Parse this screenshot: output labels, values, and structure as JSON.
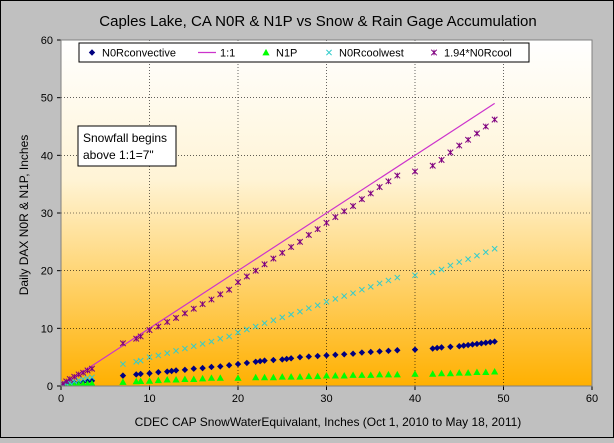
{
  "chart_data": {
    "type": "scatter",
    "title": "Caples Lake, CA N0R & N1P  vs Snow & Rain Gage Accumulation",
    "xlabel": "CDEC CAP SnowWaterEquivalant, Inches (Oct 1, 2010 to May 18, 2011)",
    "ylabel": "Daily DAX N0R & N1P, Inches",
    "xlim": [
      0,
      60
    ],
    "ylim": [
      0,
      60
    ],
    "x_ticks": [
      "0",
      "10",
      "20",
      "30",
      "40",
      "50",
      "60"
    ],
    "y_ticks": [
      "0",
      "10",
      "20",
      "30",
      "40",
      "50",
      "60"
    ],
    "grid": true,
    "legend_position": "top",
    "annotation": {
      "line1": "Snowfall begins",
      "line2": "above 1:1=7\"",
      "x": 4.8,
      "y": 42
    },
    "colors": {
      "N0Rconvective": "#000080",
      "1:1": "#cc33cc",
      "N1P": "#00ff00",
      "N0Rcoolwest": "#33cccc",
      "1.94*N0Rcool": "#800080",
      "gradient_top": "#ffffff",
      "gradient_bottom": "#ffb000"
    },
    "series": [
      {
        "name": "N0Rconvective",
        "marker": "diamond",
        "points": [
          [
            0.2,
            0.1
          ],
          [
            0.6,
            0.2
          ],
          [
            1.0,
            0.3
          ],
          [
            1.5,
            0.5
          ],
          [
            2.0,
            0.6
          ],
          [
            2.5,
            0.7
          ],
          [
            3.0,
            0.8
          ],
          [
            3.5,
            0.9
          ],
          [
            7,
            1.8
          ],
          [
            8.5,
            2.0
          ],
          [
            9,
            2.1
          ],
          [
            10,
            2.2
          ],
          [
            11,
            2.4
          ],
          [
            12,
            2.5
          ],
          [
            12.5,
            2.6
          ],
          [
            13,
            2.7
          ],
          [
            14,
            2.8
          ],
          [
            15,
            3.0
          ],
          [
            16,
            3.1
          ],
          [
            17,
            3.3
          ],
          [
            18,
            3.4
          ],
          [
            19,
            3.6
          ],
          [
            20,
            3.8
          ],
          [
            21,
            4.0
          ],
          [
            22,
            4.2
          ],
          [
            22.5,
            4.3
          ],
          [
            23,
            4.4
          ],
          [
            24,
            4.5
          ],
          [
            25,
            4.6
          ],
          [
            25.5,
            4.7
          ],
          [
            26,
            4.8
          ],
          [
            27,
            5.0
          ],
          [
            28,
            5.1
          ],
          [
            29,
            5.2
          ],
          [
            30,
            5.3
          ],
          [
            31,
            5.4
          ],
          [
            32,
            5.5
          ],
          [
            33,
            5.6
          ],
          [
            34,
            5.8
          ],
          [
            35,
            5.9
          ],
          [
            36,
            6.0
          ],
          [
            37,
            6.1
          ],
          [
            38,
            6.2
          ],
          [
            40,
            6.3
          ],
          [
            42,
            6.5
          ],
          [
            42.5,
            6.6
          ],
          [
            43,
            6.7
          ],
          [
            44,
            6.8
          ],
          [
            45,
            6.9
          ],
          [
            45.5,
            7.0
          ],
          [
            46,
            7.1
          ],
          [
            46.5,
            7.2
          ],
          [
            47,
            7.3
          ],
          [
            47.5,
            7.4
          ],
          [
            48,
            7.5
          ],
          [
            48.5,
            7.6
          ],
          [
            49,
            7.7
          ]
        ]
      },
      {
        "name": "1:1",
        "marker": "line",
        "points": [
          [
            0,
            0
          ],
          [
            49,
            49
          ]
        ]
      },
      {
        "name": "N1P",
        "marker": "triangle",
        "points": [
          [
            0.2,
            0.05
          ],
          [
            0.6,
            0.1
          ],
          [
            1.0,
            0.15
          ],
          [
            1.5,
            0.2
          ],
          [
            2.0,
            0.3
          ],
          [
            2.5,
            0.35
          ],
          [
            3.0,
            0.4
          ],
          [
            3.5,
            0.45
          ],
          [
            7,
            0.7
          ],
          [
            8.5,
            0.8
          ],
          [
            9,
            0.85
          ],
          [
            10,
            0.9
          ],
          [
            11,
            1.0
          ],
          [
            12,
            1.1
          ],
          [
            13,
            1.1
          ],
          [
            14,
            1.2
          ],
          [
            15,
            1.2
          ],
          [
            16,
            1.3
          ],
          [
            17,
            1.4
          ],
          [
            18,
            1.4
          ],
          [
            20,
            1.4
          ],
          [
            22,
            1.5
          ],
          [
            23,
            1.5
          ],
          [
            24,
            1.5
          ],
          [
            25,
            1.6
          ],
          [
            26,
            1.6
          ],
          [
            27,
            1.6
          ],
          [
            28,
            1.7
          ],
          [
            29,
            1.7
          ],
          [
            30,
            1.8
          ],
          [
            31,
            1.8
          ],
          [
            32,
            1.8
          ],
          [
            33,
            1.9
          ],
          [
            34,
            1.9
          ],
          [
            35,
            1.9
          ],
          [
            36,
            2.0
          ],
          [
            37,
            2.0
          ],
          [
            38,
            2.0
          ],
          [
            40,
            2.1
          ],
          [
            42,
            2.1
          ],
          [
            43,
            2.2
          ],
          [
            44,
            2.2
          ],
          [
            45,
            2.3
          ],
          [
            46,
            2.3
          ],
          [
            47,
            2.4
          ],
          [
            48,
            2.4
          ],
          [
            49,
            2.5
          ]
        ]
      },
      {
        "name": "N0Rcoolwest",
        "marker": "x",
        "points": [
          [
            0.2,
            0.2
          ],
          [
            0.6,
            0.4
          ],
          [
            1.0,
            0.6
          ],
          [
            1.5,
            0.8
          ],
          [
            2.0,
            1.0
          ],
          [
            2.5,
            1.2
          ],
          [
            3.0,
            1.4
          ],
          [
            3.5,
            1.5
          ],
          [
            7,
            3.8
          ],
          [
            8.5,
            4.2
          ],
          [
            9,
            4.4
          ],
          [
            10,
            5.0
          ],
          [
            11,
            5.3
          ],
          [
            12,
            5.7
          ],
          [
            13,
            6.1
          ],
          [
            14,
            6.5
          ],
          [
            15,
            6.9
          ],
          [
            16,
            7.3
          ],
          [
            17,
            7.7
          ],
          [
            18,
            8.2
          ],
          [
            19,
            8.6
          ],
          [
            20,
            9.3
          ],
          [
            21,
            9.8
          ],
          [
            22,
            10.3
          ],
          [
            23,
            10.9
          ],
          [
            24,
            11.4
          ],
          [
            25,
            11.9
          ],
          [
            26,
            12.4
          ],
          [
            27,
            12.9
          ],
          [
            28,
            13.5
          ],
          [
            29,
            14.0
          ],
          [
            30,
            14.6
          ],
          [
            31,
            15.1
          ],
          [
            32,
            15.6
          ],
          [
            33,
            16.1
          ],
          [
            34,
            16.7
          ],
          [
            35,
            17.2
          ],
          [
            36,
            17.8
          ],
          [
            37,
            18.3
          ],
          [
            38,
            18.8
          ],
          [
            40,
            19.2
          ],
          [
            42,
            19.7
          ],
          [
            43,
            20.2
          ],
          [
            44,
            20.9
          ],
          [
            45,
            21.5
          ],
          [
            46,
            22.0
          ],
          [
            47,
            22.6
          ],
          [
            48,
            23.2
          ],
          [
            49,
            23.8
          ]
        ]
      },
      {
        "name": "1.94*N0Rcool",
        "marker": "star",
        "points": [
          [
            0.2,
            0.4
          ],
          [
            0.6,
            0.8
          ],
          [
            1.0,
            1.2
          ],
          [
            1.5,
            1.6
          ],
          [
            2.0,
            2.0
          ],
          [
            2.5,
            2.3
          ],
          [
            3.0,
            2.7
          ],
          [
            3.5,
            3.0
          ],
          [
            7,
            7.4
          ],
          [
            8.5,
            8.2
          ],
          [
            9,
            8.6
          ],
          [
            10,
            9.7
          ],
          [
            11,
            10.3
          ],
          [
            12,
            11.1
          ],
          [
            13,
            11.8
          ],
          [
            14,
            12.6
          ],
          [
            15,
            13.4
          ],
          [
            16,
            14.2
          ],
          [
            17,
            15.0
          ],
          [
            18,
            15.9
          ],
          [
            19,
            16.7
          ],
          [
            20,
            18.0
          ],
          [
            21,
            19.0
          ],
          [
            22,
            20.0
          ],
          [
            23,
            21.1
          ],
          [
            24,
            22.1
          ],
          [
            25,
            23.1
          ],
          [
            26,
            24.1
          ],
          [
            27,
            25.0
          ],
          [
            28,
            26.2
          ],
          [
            29,
            27.2
          ],
          [
            30,
            28.3
          ],
          [
            31,
            29.3
          ],
          [
            32,
            30.3
          ],
          [
            33,
            31.2
          ],
          [
            34,
            32.4
          ],
          [
            35,
            33.4
          ],
          [
            36,
            34.5
          ],
          [
            37,
            35.5
          ],
          [
            38,
            36.5
          ],
          [
            40,
            37.2
          ],
          [
            42,
            38.2
          ],
          [
            43,
            39.2
          ],
          [
            44,
            40.5
          ],
          [
            45,
            41.7
          ],
          [
            46,
            42.7
          ],
          [
            47,
            43.8
          ],
          [
            48,
            45.0
          ],
          [
            49,
            46.2
          ]
        ]
      }
    ]
  }
}
